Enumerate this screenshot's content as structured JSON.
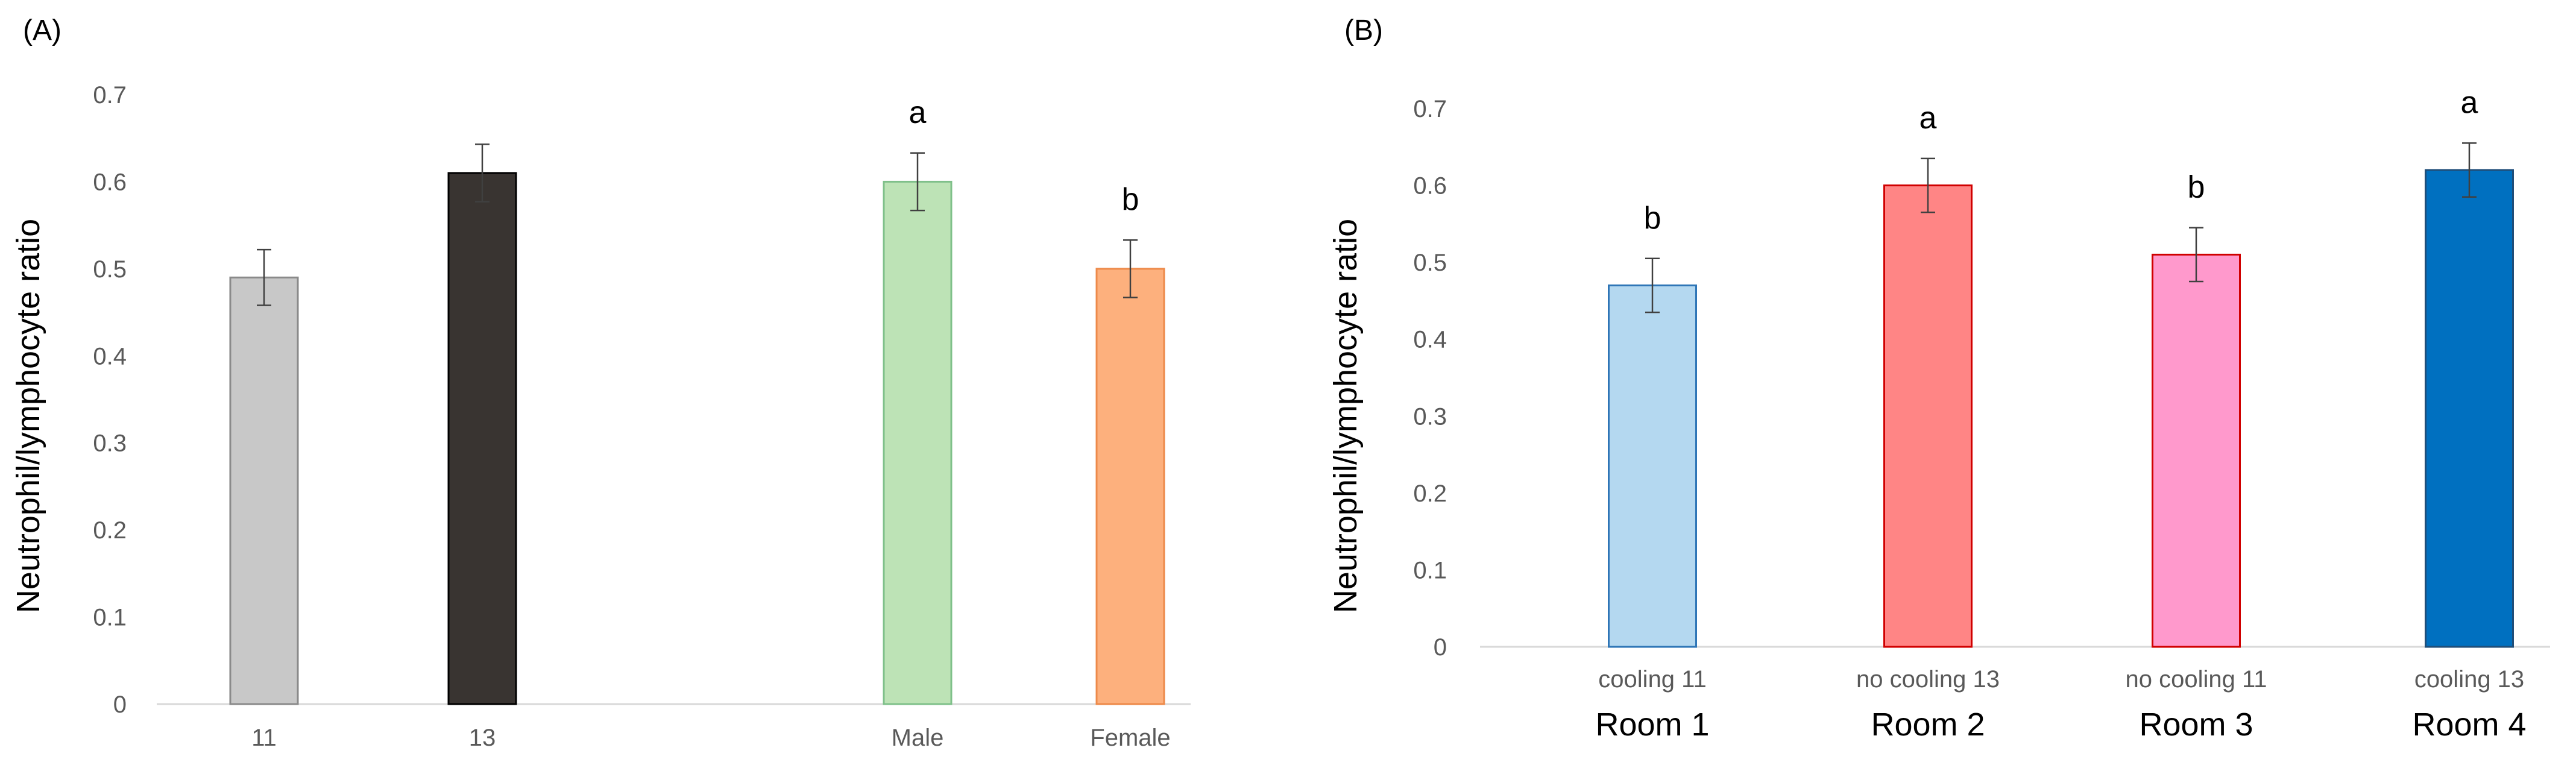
{
  "chart_data": [
    {
      "type": "bar",
      "panel_label": "(A)",
      "ylabel": "Neutrophil/lymphocyte  ratio",
      "ylim": [
        0,
        0.7
      ],
      "ytick_labels": [
        "0",
        "0.1",
        "0.2",
        "0.3",
        "0.4",
        "0.5",
        "0.6",
        "0.7"
      ],
      "grid": false,
      "categories": [
        "11",
        "13",
        "Male",
        "Female"
      ],
      "values": [
        0.49,
        0.61,
        0.6,
        0.5
      ],
      "errors": [
        0.032,
        0.033,
        0.033,
        0.033
      ],
      "significance": [
        "",
        "",
        "a",
        "b"
      ],
      "colors": [
        "#c8c8c8",
        "#393431",
        "#bde3b6",
        "#fdb07d"
      ],
      "edge_colors": [
        "#8a8a8a",
        "#000000",
        "#7fc08a",
        "#ed8a4a"
      ]
    },
    {
      "type": "bar",
      "panel_label": "(B)",
      "ylabel": "Neutrophil/lymphocyte  ratio",
      "ylim": [
        0,
        0.7
      ],
      "ytick_labels": [
        "0",
        "0.1",
        "0.2",
        "0.3",
        "0.4",
        "0.5",
        "0.6",
        "0.7"
      ],
      "grid": false,
      "categories": [
        "cooling 11",
        "no cooling 13",
        "no cooling 11",
        "cooling 13"
      ],
      "group_labels": [
        "Room 1",
        "Room 2",
        "Room 3",
        "Room 4"
      ],
      "values": [
        0.47,
        0.6,
        0.51,
        0.62
      ],
      "errors": [
        0.035,
        0.035,
        0.035,
        0.035
      ],
      "significance": [
        "b",
        "a",
        "b",
        "a"
      ],
      "colors": [
        "#b4d8f0",
        "#ff8585",
        "#ff99cc",
        "#0070c0"
      ],
      "edge_colors": [
        "#2e75b6",
        "#d00000",
        "#d00000",
        "#1f4e79"
      ]
    }
  ]
}
